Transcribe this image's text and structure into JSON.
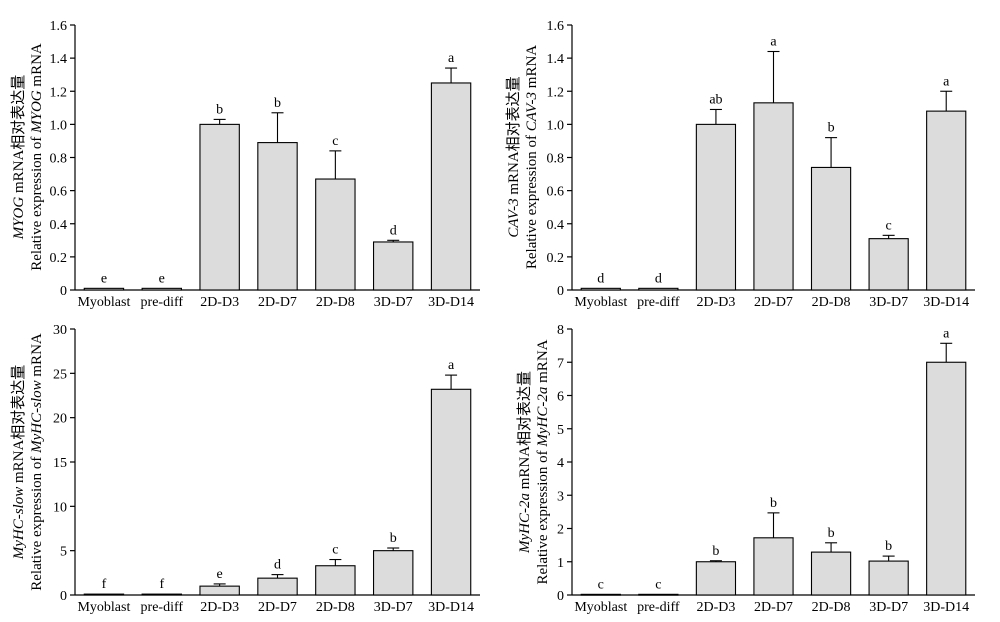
{
  "colors": {
    "bar_fill": "#dcdcdc",
    "bar_edge": "#000000",
    "background": "#ffffff"
  },
  "chart_data": [
    {
      "type": "bar",
      "grid": false,
      "categories": [
        "Myoblast",
        "pre-diff",
        "2D-D3",
        "2D-D7",
        "2D-D8",
        "3D-D7",
        "3D-D14"
      ],
      "values": [
        0.01,
        0.01,
        1.0,
        0.89,
        0.67,
        0.29,
        1.25
      ],
      "errors": [
        0,
        0,
        0.03,
        0.18,
        0.17,
        0.01,
        0.09
      ],
      "significance": [
        "e",
        "e",
        "b",
        "b",
        "c",
        "d",
        "a"
      ],
      "ylim": [
        0,
        1.6
      ],
      "yticks": [
        "0",
        "0.2",
        "0.4",
        "0.6",
        "0.8",
        "1.0",
        "1.2",
        "1.4",
        "1.6"
      ],
      "ylabel": [
        [
          {
            "text": "MYOG",
            "italic": true
          },
          {
            "text": " mRNA相对表达量"
          }
        ],
        [
          {
            "text": "Relative expression of "
          },
          {
            "text": "MYOG",
            "italic": true
          },
          {
            "text": " mRNA"
          }
        ]
      ]
    },
    {
      "type": "bar",
      "grid": false,
      "categories": [
        "Myoblast",
        "pre-diff",
        "2D-D3",
        "2D-D7",
        "2D-D8",
        "3D-D7",
        "3D-D14"
      ],
      "values": [
        0.01,
        0.01,
        1.0,
        1.13,
        0.74,
        0.31,
        1.08
      ],
      "errors": [
        0,
        0,
        0.09,
        0.31,
        0.18,
        0.02,
        0.12
      ],
      "significance": [
        "d",
        "d",
        "ab",
        "a",
        "b",
        "c",
        "a"
      ],
      "ylim": [
        0,
        1.6
      ],
      "yticks": [
        "0",
        "0.2",
        "0.4",
        "0.6",
        "0.8",
        "1.0",
        "1.2",
        "1.4",
        "1.6"
      ],
      "ylabel": [
        [
          {
            "text": "CAV-3",
            "italic": true
          },
          {
            "text": " mRNA相对表达量"
          }
        ],
        [
          {
            "text": "Relative expression of "
          },
          {
            "text": "CAV-3",
            "italic": true
          },
          {
            "text": " mRNA"
          }
        ]
      ]
    },
    {
      "type": "bar",
      "grid": false,
      "categories": [
        "Myoblast",
        "pre-diff",
        "2D-D3",
        "2D-D7",
        "2D-D8",
        "3D-D7",
        "3D-D14"
      ],
      "values": [
        0.1,
        0.1,
        1.0,
        1.9,
        3.3,
        5.0,
        23.2
      ],
      "errors": [
        0,
        0,
        0.25,
        0.4,
        0.7,
        0.3,
        1.6
      ],
      "significance": [
        "f",
        "f",
        "e",
        "d",
        "c",
        "b",
        "a"
      ],
      "ylim": [
        0,
        30
      ],
      "yticks": [
        "0",
        "5",
        "10",
        "15",
        "20",
        "25",
        "30"
      ],
      "ylabel": [
        [
          {
            "text": "MyHC-slow",
            "italic": true
          },
          {
            "text": " mRNA相对表达量"
          }
        ],
        [
          {
            "text": "Relative expression of "
          },
          {
            "text": "MyHC-slow",
            "italic": true
          },
          {
            "text": " mRNA"
          }
        ]
      ]
    },
    {
      "type": "bar",
      "grid": false,
      "categories": [
        "Myoblast",
        "pre-diff",
        "2D-D3",
        "2D-D7",
        "2D-D8",
        "3D-D7",
        "3D-D14"
      ],
      "values": [
        0.02,
        0.02,
        1.0,
        1.72,
        1.29,
        1.02,
        7.0
      ],
      "errors": [
        0,
        0,
        0.03,
        0.75,
        0.28,
        0.15,
        0.57
      ],
      "significance": [
        "c",
        "c",
        "b",
        "b",
        "b",
        "b",
        "a"
      ],
      "ylim": [
        0,
        8
      ],
      "yticks": [
        "0",
        "1",
        "2",
        "3",
        "4",
        "5",
        "6",
        "7",
        "8"
      ],
      "ylabel": [
        [
          {
            "text": "MyHC-2a",
            "italic": true
          },
          {
            "text": " mRNA相对表达量"
          }
        ],
        [
          {
            "text": "Relative expression of "
          },
          {
            "text": "MyHC-2a",
            "italic": true
          },
          {
            "text": " mRNA"
          }
        ]
      ]
    }
  ]
}
